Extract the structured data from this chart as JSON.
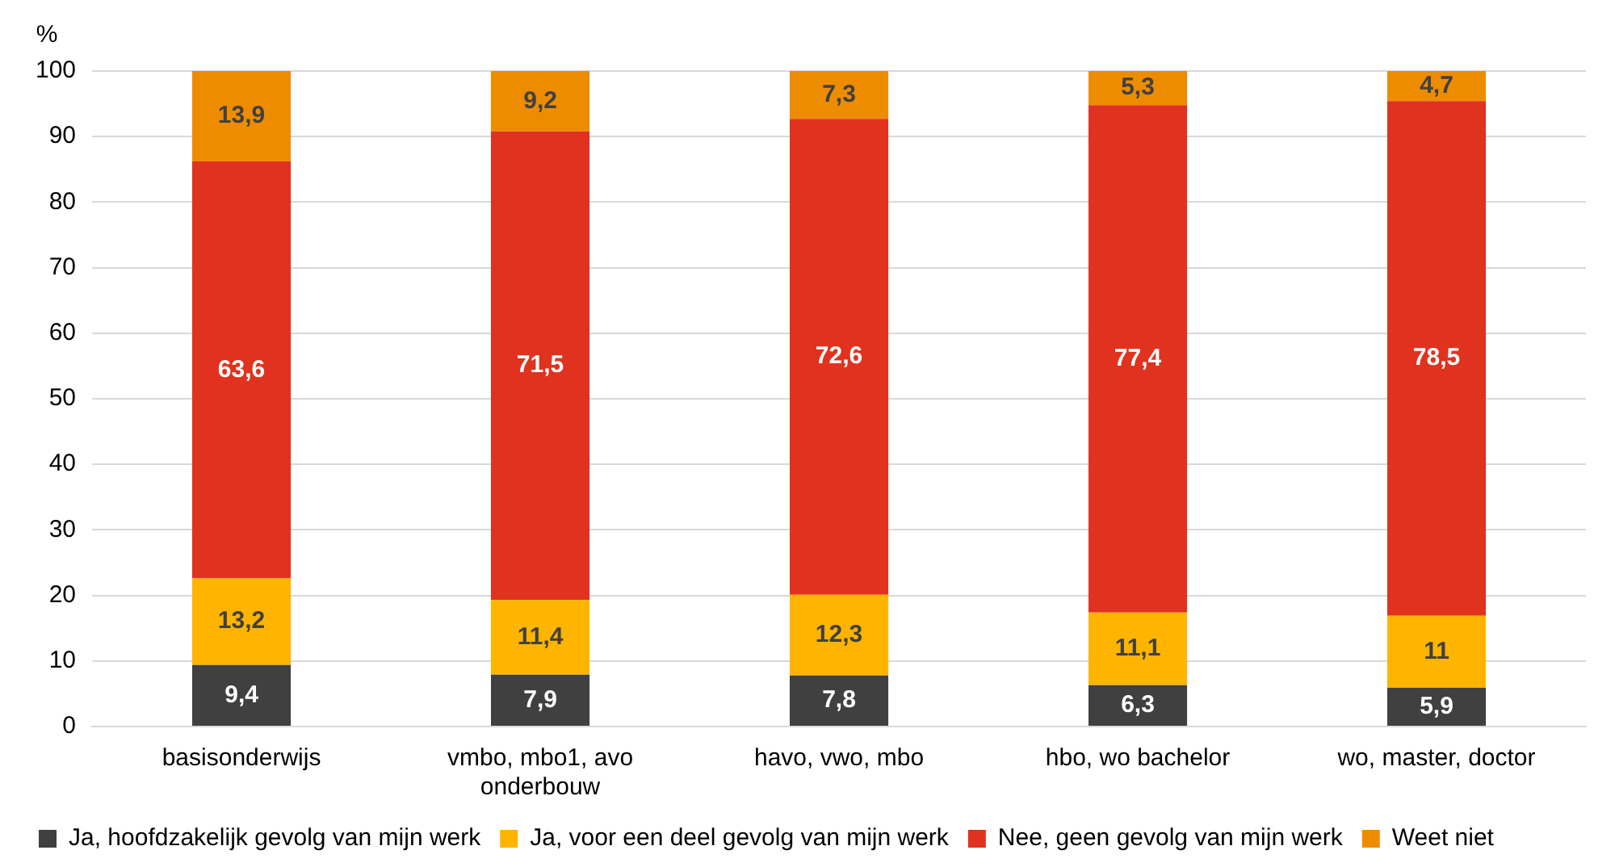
{
  "chart_data": {
    "type": "bar",
    "stacked": true,
    "ylabel": "%",
    "categories": [
      "basisonderwijs",
      "vmbo, mbo1, avo onderbouw",
      "havo, vwo, mbo",
      "hbo, wo bachelor",
      "wo, master, doctor"
    ],
    "series": [
      {
        "name": "Ja, hoofdzakelijk gevolg van mijn werk",
        "color": "#404040",
        "values": [
          9.4,
          7.9,
          7.8,
          6.3,
          5.9
        ],
        "value_labels": [
          "9,4",
          "7,9",
          "7,8",
          "6,3",
          "5,9"
        ]
      },
      {
        "name": "Ja, voor een deel gevolg van mijn werk",
        "color": "#ffb400",
        "values": [
          13.2,
          11.4,
          12.3,
          11.1,
          11
        ],
        "value_labels": [
          "13,2",
          "11,4",
          "12,3",
          "11,1",
          "11"
        ]
      },
      {
        "name": "Nee, geen gevolg van mijn werk",
        "color": "#e0321e",
        "values": [
          63.6,
          71.5,
          72.6,
          77.4,
          78.5
        ],
        "value_labels": [
          "63,6",
          "71,5",
          "72,6",
          "77,4",
          "78,5"
        ]
      },
      {
        "name": "Weet niet",
        "color": "#ee8c00",
        "values": [
          13.9,
          9.2,
          7.3,
          5.3,
          4.7
        ],
        "value_labels": [
          "13,9",
          "9,2",
          "7,3",
          "5,3",
          "4,7"
        ]
      }
    ],
    "ylim": [
      0,
      100
    ],
    "yticks": [
      0,
      10,
      20,
      30,
      40,
      50,
      60,
      70,
      80,
      90,
      100
    ],
    "grid": "y",
    "legend": "bottom"
  }
}
